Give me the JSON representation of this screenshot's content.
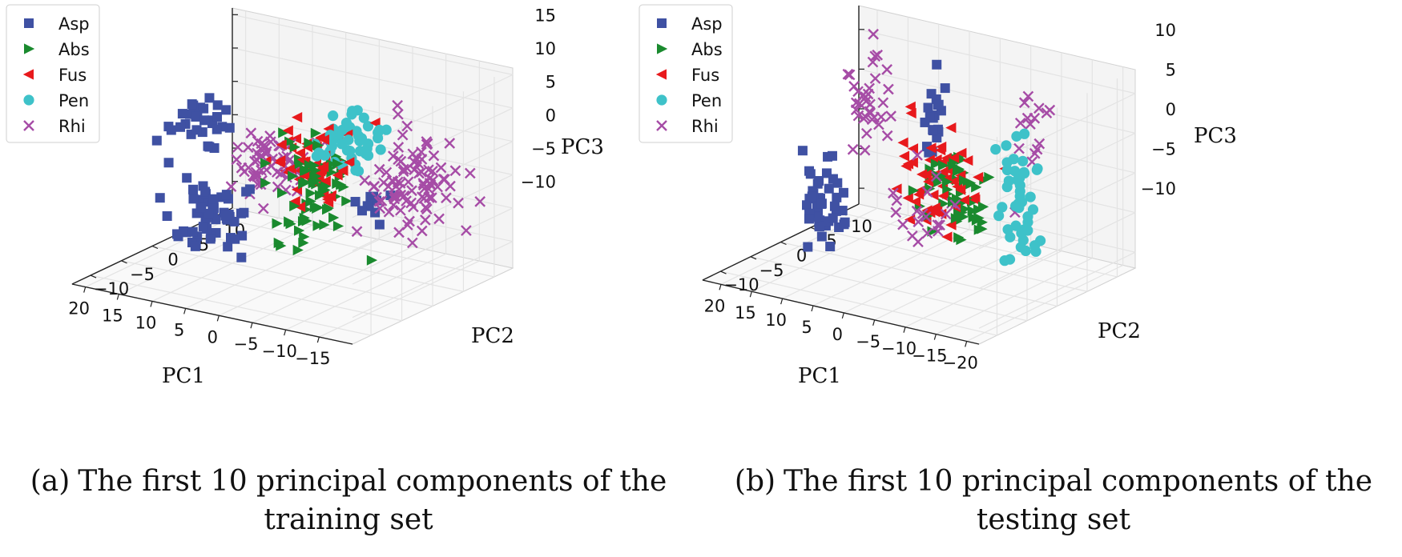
{
  "chart_data": [
    {
      "type": "scatter",
      "projection": "3d",
      "title": "The first 10 principal components of the training set",
      "caption_label": "(a)",
      "caption_lines": [
        "The first 10 principal components of the",
        "training set"
      ],
      "xlabel": "PC1",
      "ylabel": "PC2",
      "zlabel": "PC3",
      "xlim": [
        -20,
        22
      ],
      "ylim": [
        -13,
        13
      ],
      "zlim": [
        -14,
        16
      ],
      "xticks": [
        "−15",
        "−10",
        "−5",
        "0",
        "5",
        "10",
        "15",
        "20"
      ],
      "xtick_values": [
        -15,
        -10,
        -5,
        0,
        5,
        10,
        15,
        20
      ],
      "yticks": [
        "−10",
        "−5",
        "0",
        "5",
        "10"
      ],
      "ytick_values": [
        -10,
        -5,
        0,
        5,
        10
      ],
      "zticks": [
        "−10",
        "−5",
        "0",
        "5",
        "10",
        "15"
      ],
      "ztick_values": [
        -10,
        -5,
        0,
        5,
        10,
        15
      ],
      "legend_position": "top-left",
      "series": [
        {
          "name": "Asp",
          "marker": "square",
          "color": "#3f51a3",
          "clusters": [
            {
              "x": 8,
              "y": -6,
              "z": -4,
              "spread": [
                5,
                3,
                4
              ],
              "count": 60
            },
            {
              "x": 14,
              "y": 0,
              "z": 6,
              "spread": [
                3,
                3,
                3
              ],
              "count": 30
            },
            {
              "x": -8,
              "y": 4,
              "z": -3,
              "spread": [
                2,
                2,
                2
              ],
              "count": 10
            }
          ]
        },
        {
          "name": "Abs",
          "marker": "triangle-right",
          "color": "#1a8a2e",
          "clusters": [
            {
              "x": -2,
              "y": 0,
              "z": 0,
              "spread": [
                4,
                4,
                7
              ],
              "count": 70
            }
          ]
        },
        {
          "name": "Fus",
          "marker": "triangle-left",
          "color": "#e8191c",
          "clusters": [
            {
              "x": 0,
              "y": 2,
              "z": 3,
              "spread": [
                4,
                3,
                5
              ],
              "count": 60
            }
          ]
        },
        {
          "name": "Pen",
          "marker": "circle",
          "color": "#3ec2c9",
          "clusters": [
            {
              "x": -4,
              "y": 4,
              "z": 5,
              "spread": [
                3,
                3,
                4
              ],
              "count": 45
            }
          ]
        },
        {
          "name": "Rhi",
          "marker": "x",
          "color": "#a64ca6",
          "clusters": [
            {
              "x": -14,
              "y": 3,
              "z": 2,
              "spread": [
                4,
                4,
                6
              ],
              "count": 90
            },
            {
              "x": 6,
              "y": 2,
              "z": 1,
              "spread": [
                4,
                4,
                5
              ],
              "count": 60
            }
          ]
        }
      ]
    },
    {
      "type": "scatter",
      "projection": "3d",
      "title": "The first 10 principal components of the testing set",
      "caption_label": "(b)",
      "caption_lines": [
        "The first 10 principal components of the",
        "testing set"
      ],
      "xlabel": "PC1",
      "ylabel": "PC2",
      "zlabel": "PC3",
      "xlim": [
        -22,
        23
      ],
      "ylim": [
        -13,
        13
      ],
      "zlim": [
        -12,
        13
      ],
      "xticks": [
        "−20",
        "−15",
        "−10",
        "−5",
        "0",
        "5",
        "10",
        "15",
        "20"
      ],
      "xtick_values": [
        -20,
        -15,
        -10,
        -5,
        0,
        5,
        10,
        15,
        20
      ],
      "yticks": [
        "−10",
        "−5",
        "0",
        "5",
        "10"
      ],
      "ytick_values": [
        -10,
        -5,
        0,
        5,
        10
      ],
      "zticks": [
        "−10",
        "−5",
        "0",
        "5",
        "10"
      ],
      "ztick_values": [
        -10,
        -5,
        0,
        5,
        10
      ],
      "legend_position": "top-left",
      "series": [
        {
          "name": "Asp",
          "marker": "square",
          "color": "#3f51a3",
          "clusters": [
            {
              "x": 10,
              "y": -6,
              "z": -3,
              "spread": [
                3,
                2,
                4
              ],
              "count": 45
            },
            {
              "x": 2,
              "y": 4,
              "z": 6,
              "spread": [
                1,
                1,
                5
              ],
              "count": 20
            }
          ]
        },
        {
          "name": "Abs",
          "marker": "triangle-right",
          "color": "#1a8a2e",
          "clusters": [
            {
              "x": -6,
              "y": 0,
              "z": -1,
              "spread": [
                5,
                2,
                5
              ],
              "count": 60
            }
          ]
        },
        {
          "name": "Fus",
          "marker": "triangle-left",
          "color": "#e8191c",
          "clusters": [
            {
              "x": -3,
              "y": 0,
              "z": 0,
              "spread": [
                5,
                2,
                5
              ],
              "count": 55
            }
          ]
        },
        {
          "name": "Pen",
          "marker": "circle",
          "color": "#3ec2c9",
          "clusters": [
            {
              "x": -14,
              "y": 2,
              "z": 0,
              "spread": [
                2,
                2,
                7
              ],
              "count": 45
            }
          ]
        },
        {
          "name": "Rhi",
          "marker": "x",
          "color": "#a64ca6",
          "clusters": [
            {
              "x": 14,
              "y": 6,
              "z": 6,
              "spread": [
                3,
                2,
                5
              ],
              "count": 35
            },
            {
              "x": -12,
              "y": 6,
              "z": 6,
              "spread": [
                2,
                2,
                4
              ],
              "count": 15
            },
            {
              "x": -2,
              "y": -2,
              "z": -3,
              "spread": [
                4,
                2,
                4
              ],
              "count": 20
            }
          ]
        }
      ]
    }
  ]
}
